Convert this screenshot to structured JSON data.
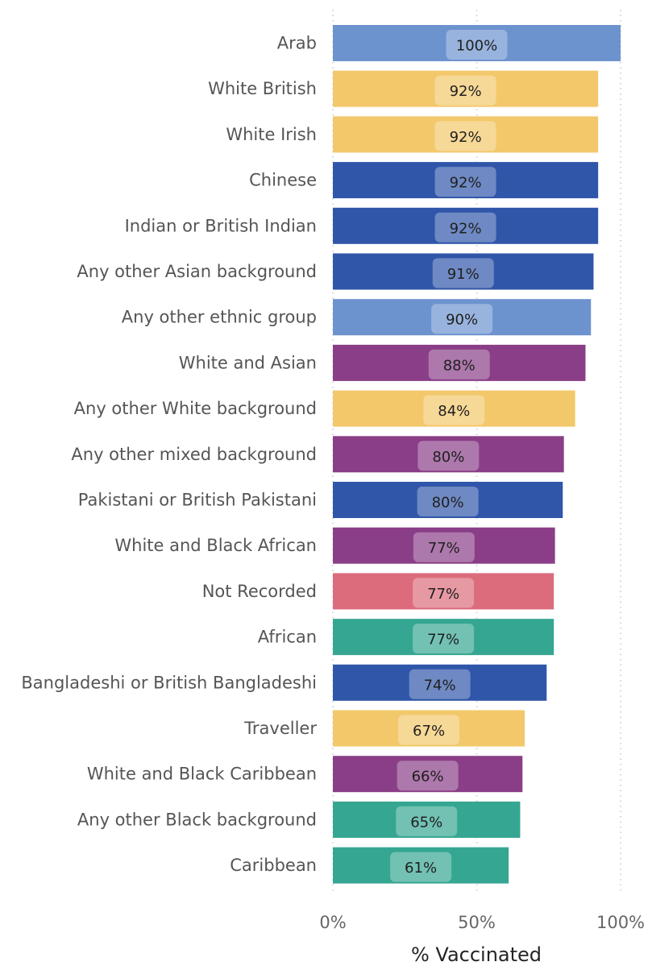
{
  "chart_data": {
    "type": "bar",
    "orientation": "horizontal",
    "title": "",
    "xlabel": "% Vaccinated",
    "ylabel": "",
    "xlim": [
      0,
      100
    ],
    "xticks": [
      "0%",
      "50%",
      "100%"
    ],
    "grid": true,
    "categories": [
      "Arab",
      "White British",
      "White Irish",
      "Chinese",
      "Indian or British Indian",
      "Any other Asian background",
      "Any other ethnic group",
      "White and Asian",
      "Any other White background",
      "Any other mixed background",
      "Pakistani or British Pakistani",
      "White and Black African",
      "Not Recorded",
      "African",
      "Bangladeshi or British Bangladeshi",
      "Traveller",
      "White and Black Caribbean",
      "Any other Black background",
      "Caribbean"
    ],
    "values": [
      100,
      92.2,
      92.2,
      92.2,
      92.2,
      90.6,
      89.7,
      87.8,
      84.2,
      80.3,
      79.9,
      77.2,
      76.8,
      76.8,
      74.3,
      66.7,
      65.9,
      65.1,
      61.1
    ],
    "data_labels": [
      "100%",
      "92%",
      "92%",
      "92%",
      "92%",
      "91%",
      "90%",
      "88%",
      "84%",
      "80%",
      "80%",
      "77%",
      "77%",
      "77%",
      "74%",
      "67%",
      "66%",
      "65%",
      "61%"
    ],
    "bar_colors": [
      "#6C93CE",
      "#F3C86B",
      "#F3C86B",
      "#3056A9",
      "#3056A9",
      "#3056A9",
      "#6C93CE",
      "#8A3E87",
      "#F3C86B",
      "#8A3E87",
      "#3056A9",
      "#8A3E87",
      "#DC6C7C",
      "#35A692",
      "#3056A9",
      "#F3C86B",
      "#8A3E87",
      "#35A692",
      "#35A692"
    ]
  }
}
